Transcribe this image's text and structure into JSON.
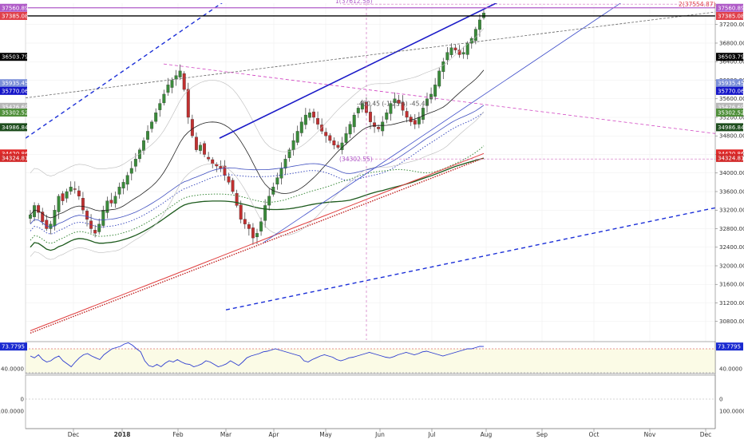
{
  "chart_data": {
    "type": "candlestick",
    "symbol_hint": "index",
    "x_ticks": [
      "Dec",
      "2018",
      "Feb",
      "Mar",
      "Apr",
      "May",
      "Jun",
      "Jul",
      "Aug",
      "Sep",
      "Oct",
      "Nov",
      "Dec"
    ],
    "y_ticks": [
      30800,
      31200,
      31600,
      32000,
      32400,
      32800,
      33200,
      33600,
      34000,
      34400,
      34800,
      35200,
      35600,
      36000,
      36400,
      36800,
      37200
    ],
    "y_tick_labels": [
      "30800.00",
      "31200.00",
      "31600.00",
      "32000.00",
      "32400.00",
      "32800.00",
      "33200.00",
      "33600.00",
      "34000.00",
      "34400.00",
      "34800.00",
      "35200.00",
      "35600.00",
      "36000.00",
      "36400.00",
      "36800.00",
      "37200.00"
    ],
    "ylim": [
      30400,
      37660
    ],
    "grid": true,
    "price_tags": [
      {
        "label": "37560.89",
        "value": 37560.89,
        "color": "#b05cc8"
      },
      {
        "label": "37385.08",
        "value": 37385.08,
        "color": "#e0404a"
      },
      {
        "label": "36503.79",
        "value": 36503.79,
        "color": "#000000"
      },
      {
        "label": "35935.45",
        "value": 35935.45,
        "color": "#7b8fd8"
      },
      {
        "label": "35770.06",
        "value": 35770.06,
        "color": "#1515c8"
      },
      {
        "label": "35426.69",
        "value": 35426.69,
        "color": "#b8b8b8"
      },
      {
        "label": "35302.52",
        "value": 35302.52,
        "color": "#4f8f3a"
      },
      {
        "label": "34986.84",
        "value": 34986.84,
        "color": "#1d4d1d"
      },
      {
        "label": "34420.86",
        "value": 34420.86,
        "color": "#e02828"
      },
      {
        "label": "34324.81",
        "value": 34324.81,
        "color": "#d22a2a"
      }
    ],
    "annotations": [
      {
        "text": "1(37612.58)",
        "color": "#b05cc8"
      },
      {
        "text": "2(37554.87)",
        "color": "#e0404a"
      },
      {
        "text": "-450.45 (-1.25%) -45.45",
        "color": "#555555"
      },
      {
        "text": "(34302.55)",
        "color": "#b05cc8"
      }
    ],
    "rsi": {
      "value": 73.7795,
      "value_label": "73.7795",
      "tick_label": "40.0000",
      "upper": 70,
      "lower": 30,
      "values": [
        58,
        55,
        60,
        52,
        48,
        50,
        55,
        58,
        50,
        45,
        40,
        48,
        55,
        60,
        62,
        58,
        55,
        52,
        60,
        65,
        70,
        72,
        74,
        78,
        80,
        76,
        70,
        65,
        50,
        42,
        40,
        44,
        40,
        46,
        50,
        48,
        52,
        48,
        45,
        44,
        40,
        42,
        45,
        50,
        48,
        44,
        40,
        42,
        45,
        50,
        46,
        42,
        48,
        55,
        58,
        60,
        62,
        65,
        66,
        68,
        70,
        68,
        66,
        64,
        62,
        60,
        58,
        50,
        48,
        52,
        55,
        58,
        60,
        58,
        56,
        52,
        50,
        52,
        55,
        56,
        58,
        60,
        62,
        64,
        62,
        60,
        58,
        56,
        55,
        57,
        60,
        62,
        64,
        62,
        60,
        62,
        65,
        66,
        64,
        62,
        60,
        58,
        60,
        62,
        64,
        66,
        68,
        70,
        70,
        72,
        74,
        73.8
      ]
    },
    "lower_panel": {
      "tick_zero": "0",
      "tick_hundred": "100.0000"
    },
    "candles_start": 33100,
    "candles_ohlc_seed": [
      33100,
      33300,
      33150,
      32950,
      32800,
      32900,
      33200,
      33500,
      33400,
      33600,
      33700,
      33650,
      33500,
      33200,
      33000,
      32800,
      32700,
      32900,
      33200,
      33400,
      33350,
      33500,
      33700,
      33800,
      33950,
      34100,
      34300,
      34500,
      34700,
      34900,
      35100,
      35300,
      35500,
      35700,
      35900,
      36000,
      36100,
      36200,
      35800,
      35200,
      34800,
      34500,
      34600,
      34400,
      34300,
      34200,
      34150,
      34100,
      33950,
      33800,
      33600,
      33300,
      33000,
      32900,
      32800,
      32600,
      32700,
      32950,
      33300,
      33500,
      33700,
      33900,
      34100,
      34300,
      34500,
      34700,
      34900,
      35100,
      35250,
      35300,
      35200,
      35050,
      34900,
      34800,
      34700,
      34600,
      34550,
      34650,
      34850,
      35050,
      35250,
      35400,
      35500,
      35300,
      35100,
      35000,
      34950,
      35100,
      35300,
      35500,
      35600,
      35500,
      35350,
      35200,
      35100,
      35050,
      35200,
      35400,
      35600,
      35700,
      35900,
      36200,
      36400,
      36600,
      36700,
      36650,
      36550,
      36600,
      36800,
      36900,
      37100,
      37300,
      37450
    ]
  }
}
